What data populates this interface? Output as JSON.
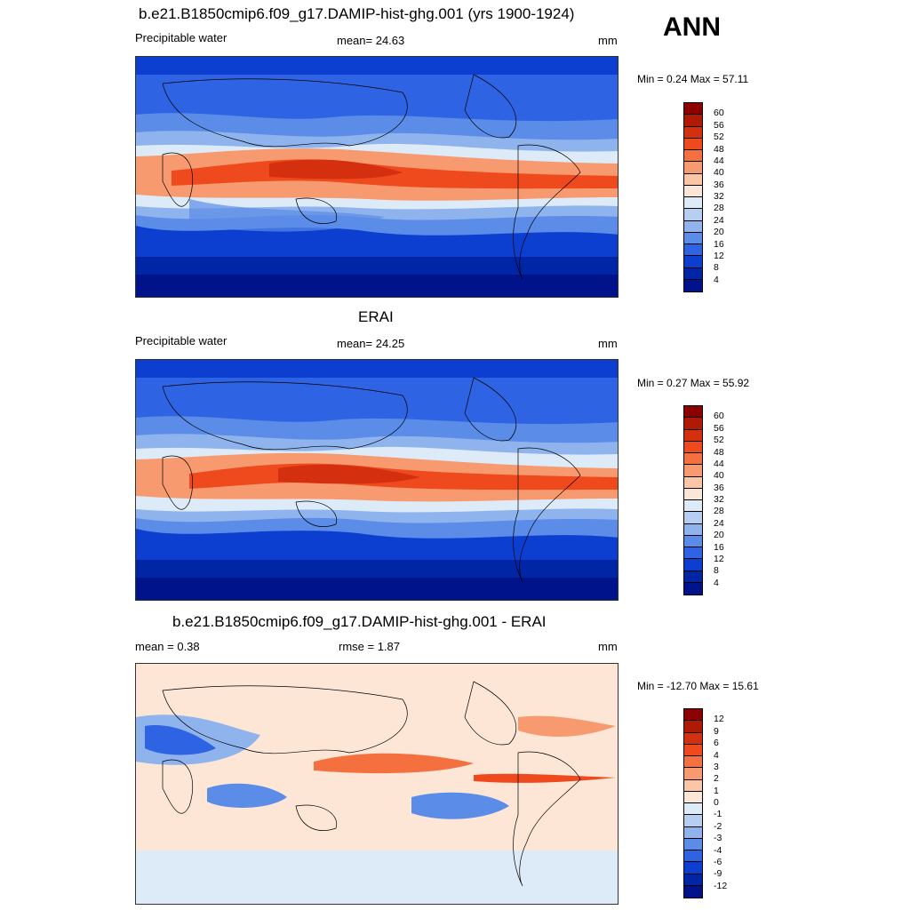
{
  "season": "ANN",
  "panels": [
    {
      "title": "b.e21.B1850cmip6.f09_g17.DAMIP-hist-ghg.001 (yrs 1900-1924)",
      "left_label": "Precipitable water",
      "center_label": "mean=  24.63",
      "units": "mm",
      "range": "Min =   0.24 Max =  57.11",
      "colorbar_labels": [
        "60",
        "56",
        "52",
        "48",
        "44",
        "40",
        "36",
        "32",
        "28",
        "24",
        "20",
        "16",
        "12",
        "8",
        "4"
      ],
      "colorbar_colors": [
        "#8c0000",
        "#b01a05",
        "#d42f0f",
        "#ee4a1e",
        "#f5703f",
        "#f89a6f",
        "#fbc6a6",
        "#fde6d6",
        "#ddeaf7",
        "#b6cff0",
        "#8fb3ec",
        "#5b8ce8",
        "#2e64e3",
        "#0c3fd0",
        "#0026a6",
        "#00138a"
      ]
    },
    {
      "title": "ERAI",
      "left_label": "Precipitable water",
      "center_label": "mean=  24.25",
      "units": "mm",
      "range": "Min =   0.27 Max =  55.92",
      "colorbar_labels": [
        "60",
        "56",
        "52",
        "48",
        "44",
        "40",
        "36",
        "32",
        "28",
        "24",
        "20",
        "16",
        "12",
        "8",
        "4"
      ],
      "colorbar_colors": [
        "#8c0000",
        "#b01a05",
        "#d42f0f",
        "#ee4a1e",
        "#f5703f",
        "#f89a6f",
        "#fbc6a6",
        "#fde6d6",
        "#ddeaf7",
        "#b6cff0",
        "#8fb3ec",
        "#5b8ce8",
        "#2e64e3",
        "#0c3fd0",
        "#0026a6",
        "#00138a"
      ]
    },
    {
      "title": "b.e21.B1850cmip6.f09_g17.DAMIP-hist-ghg.001 - ERAI",
      "left_label": "mean =   0.38",
      "center_label": "rmse =   1.87",
      "units": "mm",
      "range": "Min = -12.70 Max =  15.61",
      "colorbar_labels": [
        "12",
        "9",
        "6",
        "4",
        "3",
        "2",
        "1",
        "0",
        "-1",
        "-2",
        "-3",
        "-4",
        "-6",
        "-9",
        "-12"
      ],
      "colorbar_colors": [
        "#8c0000",
        "#b01a05",
        "#d42f0f",
        "#ee4a1e",
        "#f5703f",
        "#f89a6f",
        "#fbc6a6",
        "#fde6d6",
        "#ddeaf7",
        "#b6cff0",
        "#8fb3ec",
        "#5b8ce8",
        "#2e64e3",
        "#0c3fd0",
        "#0026a6",
        "#00138a"
      ]
    }
  ]
}
